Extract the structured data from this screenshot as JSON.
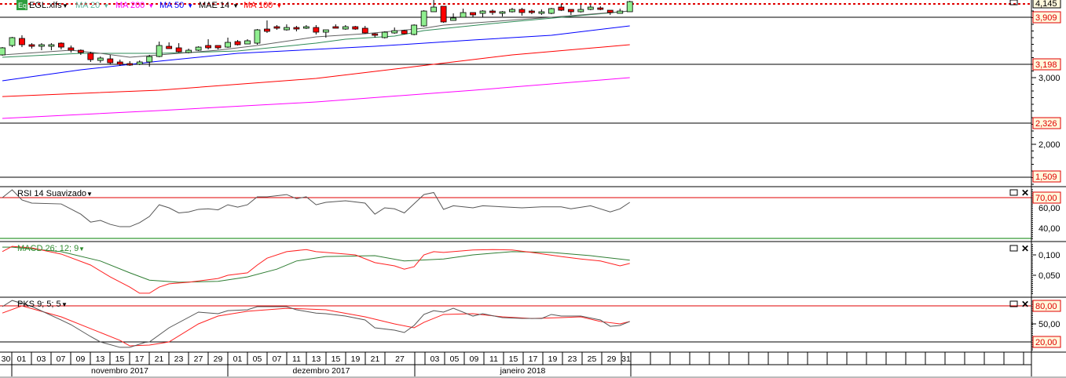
{
  "legend": {
    "eq_badge": "Eq",
    "symbol": "EGL.xlfs",
    "items": [
      {
        "label": "MA 20",
        "color": "#5fb8a0"
      },
      {
        "label": "MA 200",
        "color": "#ff00ff"
      },
      {
        "label": "MA 50",
        "color": "#0000ff"
      },
      {
        "label": "MAE 14",
        "color": "#000000"
      },
      {
        "label": "MA 100",
        "color": "#ff0000"
      }
    ]
  },
  "colors": {
    "up": "#90ee90",
    "down": "#ff0000",
    "ma20": "#2e8b57",
    "mae14": "#606060",
    "ma50": "#0000ff",
    "ma100": "#ff0000",
    "ma200": "#ff00ff",
    "level": "#ff0000",
    "label_bg": "#fff8dc"
  },
  "price_axis": {
    "last": "4,145",
    "levels": [
      "3,909",
      "3,198",
      "2,326",
      "1,509"
    ],
    "ticks": [
      "3,000",
      "2,000"
    ]
  },
  "rsi": {
    "title": "RSI 14 Suavizado",
    "level": "70,00",
    "ticks": [
      "60,00",
      "40,00"
    ],
    "values": [
      [
        0,
        70
      ],
      [
        1,
        77.7
      ],
      [
        2,
        67.7
      ],
      [
        3,
        64.6
      ],
      [
        6,
        63.8
      ],
      [
        8,
        53.8
      ],
      [
        9,
        46
      ],
      [
        10,
        47.7
      ],
      [
        11,
        43.8
      ],
      [
        12,
        41.5
      ],
      [
        13,
        41.5
      ],
      [
        14,
        45.4
      ],
      [
        15,
        51.5
      ],
      [
        16,
        63
      ],
      [
        17,
        60
      ],
      [
        18,
        55
      ],
      [
        19,
        56
      ],
      [
        20,
        58.5
      ],
      [
        21,
        59
      ],
      [
        22,
        58
      ],
      [
        23,
        63
      ],
      [
        24,
        60.7
      ],
      [
        25,
        63
      ],
      [
        26,
        70.8
      ],
      [
        27,
        70.8
      ],
      [
        29,
        73
      ],
      [
        30,
        69
      ],
      [
        31,
        70.8
      ],
      [
        32,
        63
      ],
      [
        33,
        65.4
      ],
      [
        35,
        66.9
      ],
      [
        37,
        64.6
      ],
      [
        38,
        53.8
      ],
      [
        39,
        60
      ],
      [
        40,
        59
      ],
      [
        41,
        55
      ],
      [
        43,
        73
      ],
      [
        44,
        75
      ],
      [
        45,
        58.5
      ],
      [
        46,
        62
      ],
      [
        48,
        60
      ],
      [
        49,
        62
      ],
      [
        51,
        61
      ],
      [
        53,
        60
      ],
      [
        55,
        61
      ],
      [
        57,
        61
      ],
      [
        58,
        59
      ],
      [
        60,
        62
      ],
      [
        62,
        56
      ],
      [
        63,
        59
      ],
      [
        64,
        65.4
      ]
    ]
  },
  "macd": {
    "title": "MACD 26; 12; 9",
    "ticks": [
      "0,100",
      "0,050"
    ],
    "macd": [
      [
        0,
        0.108
      ],
      [
        1,
        0.121
      ],
      [
        3,
        0.117
      ],
      [
        6,
        0.102
      ],
      [
        9,
        0.075
      ],
      [
        11,
        0.046
      ],
      [
        13,
        0.021
      ],
      [
        14,
        0.006
      ],
      [
        15,
        0.006
      ],
      [
        16,
        0.021
      ],
      [
        17,
        0.029
      ],
      [
        19,
        0.033
      ],
      [
        22,
        0.042
      ],
      [
        23,
        0.05
      ],
      [
        25,
        0.056
      ],
      [
        26,
        0.075
      ],
      [
        27,
        0.092
      ],
      [
        29,
        0.108
      ],
      [
        31,
        0.113
      ],
      [
        32,
        0.108
      ],
      [
        33,
        0.106
      ],
      [
        36,
        0.1
      ],
      [
        38,
        0.081
      ],
      [
        40,
        0.073
      ],
      [
        41,
        0.065
      ],
      [
        42,
        0.071
      ],
      [
        43,
        0.1
      ],
      [
        44,
        0.108
      ],
      [
        45,
        0.106
      ],
      [
        48,
        0.112
      ],
      [
        50,
        0.113
      ],
      [
        52,
        0.112
      ],
      [
        54,
        0.106
      ],
      [
        57,
        0.096
      ],
      [
        59,
        0.09
      ],
      [
        61,
        0.085
      ],
      [
        63,
        0.073
      ],
      [
        64,
        0.079
      ]
    ],
    "signal": [
      [
        0,
        0.119
      ],
      [
        1,
        0.119
      ],
      [
        6,
        0.108
      ],
      [
        10,
        0.085
      ],
      [
        13,
        0.056
      ],
      [
        15,
        0.038
      ],
      [
        18,
        0.033
      ],
      [
        22,
        0.035
      ],
      [
        25,
        0.046
      ],
      [
        28,
        0.065
      ],
      [
        30,
        0.085
      ],
      [
        33,
        0.096
      ],
      [
        38,
        0.098
      ],
      [
        41,
        0.085
      ],
      [
        45,
        0.09
      ],
      [
        48,
        0.1
      ],
      [
        52,
        0.108
      ],
      [
        56,
        0.106
      ],
      [
        60,
        0.098
      ],
      [
        64,
        0.087
      ]
    ]
  },
  "pks": {
    "title": "PKS 9; 5; 5",
    "levels": [
      "80,00",
      "20,00"
    ],
    "ticks": [
      "50,00"
    ],
    "k": [
      [
        0,
        78.7
      ],
      [
        1,
        89
      ],
      [
        3,
        79
      ],
      [
        6,
        56.5
      ],
      [
        7,
        48.7
      ],
      [
        9,
        29
      ],
      [
        10,
        20
      ],
      [
        12,
        11
      ],
      [
        13,
        11
      ],
      [
        14.5,
        19
      ],
      [
        15,
        20
      ],
      [
        17,
        43.5
      ],
      [
        20,
        69.6
      ],
      [
        22,
        67
      ],
      [
        23,
        72
      ],
      [
        25,
        73.5
      ],
      [
        26,
        78.7
      ],
      [
        29,
        78.7
      ],
      [
        30,
        73.5
      ],
      [
        32,
        68
      ],
      [
        33,
        67
      ],
      [
        35,
        63
      ],
      [
        37,
        56.5
      ],
      [
        38,
        43.5
      ],
      [
        40,
        39.6
      ],
      [
        41,
        35.7
      ],
      [
        42,
        47.4
      ],
      [
        43,
        65.7
      ],
      [
        44,
        72
      ],
      [
        45,
        69.6
      ],
      [
        46,
        76
      ],
      [
        48,
        63
      ],
      [
        49,
        67
      ],
      [
        51,
        60.4
      ],
      [
        53,
        59.1
      ],
      [
        55,
        59
      ],
      [
        56,
        65.7
      ],
      [
        57,
        63
      ],
      [
        59,
        63
      ],
      [
        61,
        56.5
      ],
      [
        62,
        46
      ],
      [
        63,
        47.4
      ],
      [
        64,
        54
      ]
    ],
    "d": [
      [
        0,
        68
      ],
      [
        2,
        80
      ],
      [
        6,
        61.7
      ],
      [
        12,
        22.6
      ],
      [
        13,
        13.5
      ],
      [
        15,
        14.8
      ],
      [
        17,
        20
      ],
      [
        20,
        50
      ],
      [
        22,
        63
      ],
      [
        25,
        71
      ],
      [
        29,
        76
      ],
      [
        33,
        73.5
      ],
      [
        37,
        61.7
      ],
      [
        40,
        50
      ],
      [
        42,
        43.5
      ],
      [
        43,
        52.6
      ],
      [
        45,
        65.7
      ],
      [
        48,
        67
      ],
      [
        51,
        61.7
      ],
      [
        54,
        59
      ],
      [
        57,
        60.4
      ],
      [
        59,
        61.7
      ],
      [
        61,
        54
      ],
      [
        63,
        50
      ],
      [
        64,
        54
      ]
    ]
  },
  "candles": [
    [
      3.341,
      3.458,
      3.329,
      3.447
    ],
    [
      3.482,
      3.611,
      3.458,
      3.6
    ],
    [
      3.588,
      3.635,
      3.458,
      3.494
    ],
    [
      3.494,
      3.517,
      3.435,
      3.47
    ],
    [
      3.47,
      3.517,
      3.411,
      3.494
    ],
    [
      3.47,
      3.517,
      3.411,
      3.494
    ],
    [
      3.517,
      3.529,
      3.423,
      3.458
    ],
    [
      3.447,
      3.482,
      3.376,
      3.411
    ],
    [
      3.411,
      3.423,
      3.341,
      3.376
    ],
    [
      3.364,
      3.388,
      3.235,
      3.27
    ],
    [
      3.258,
      3.317,
      3.223,
      3.294
    ],
    [
      3.282,
      3.341,
      3.2,
      3.223
    ],
    [
      3.235,
      3.27,
      3.176,
      3.2
    ],
    [
      3.211,
      3.247,
      3.176,
      3.188
    ],
    [
      3.2,
      3.258,
      3.188,
      3.235
    ],
    [
      3.235,
      3.341,
      3.164,
      3.317
    ],
    [
      3.317,
      3.541,
      3.306,
      3.482
    ],
    [
      3.47,
      3.529,
      3.435,
      3.435
    ],
    [
      3.447,
      3.517,
      3.376,
      3.388
    ],
    [
      3.376,
      3.435,
      3.364,
      3.411
    ],
    [
      3.411,
      3.47,
      3.4,
      3.458
    ],
    [
      3.482,
      3.576,
      3.423,
      3.447
    ],
    [
      3.482,
      3.482,
      3.423,
      3.447
    ],
    [
      3.458,
      3.6,
      3.447,
      3.529
    ],
    [
      3.541,
      3.564,
      3.482,
      3.494
    ],
    [
      3.505,
      3.576,
      3.505,
      3.553
    ],
    [
      3.517,
      3.729,
      3.494,
      3.717
    ],
    [
      3.729,
      3.858,
      3.67,
      3.694
    ],
    [
      3.764,
      3.788,
      3.717,
      3.741
    ],
    [
      3.717,
      3.799,
      3.705,
      3.752
    ],
    [
      3.752,
      3.776,
      3.694,
      3.729
    ],
    [
      3.741,
      3.788,
      3.729,
      3.764
    ],
    [
      3.752,
      3.788,
      3.647,
      3.682
    ],
    [
      3.682,
      3.717,
      3.6,
      3.717
    ],
    [
      3.764,
      3.799,
      3.741,
      3.741
    ],
    [
      3.729,
      3.788,
      3.717,
      3.764
    ],
    [
      3.764,
      3.776,
      3.717,
      3.729
    ],
    [
      3.741,
      3.776,
      3.658,
      3.67
    ],
    [
      3.658,
      3.67,
      3.6,
      3.635
    ],
    [
      3.6,
      3.694,
      3.588,
      3.682
    ],
    [
      3.67,
      3.752,
      3.658,
      3.705
    ],
    [
      3.705,
      3.717,
      3.647,
      3.658
    ],
    [
      3.647,
      3.799,
      3.635,
      3.788
    ],
    [
      3.776,
      4.011,
      3.764,
      3.999
    ],
    [
      3.988,
      4.164,
      3.988,
      4.058
    ],
    [
      4.07,
      4.07,
      3.823,
      3.835
    ],
    [
      3.858,
      3.964,
      3.858,
      3.894
    ],
    [
      3.905,
      4.035,
      3.905,
      3.976
    ],
    [
      3.976,
      3.976,
      3.905,
      3.941
    ],
    [
      3.964,
      4.011,
      3.905,
      3.999
    ],
    [
      3.999,
      4.023,
      3.941,
      3.976
    ],
    [
      3.964,
      3.999,
      3.917,
      3.988
    ],
    [
      3.988,
      4.046,
      3.976,
      4.023
    ],
    [
      4.023,
      4.046,
      3.929,
      3.976
    ],
    [
      3.999,
      4.023,
      3.952,
      3.976
    ],
    [
      3.964,
      4.023,
      3.941,
      3.988
    ],
    [
      3.964,
      4.046,
      3.952,
      4.035
    ],
    [
      4.058,
      4.105,
      3.999,
      4.011
    ],
    [
      4.023,
      4.023,
      3.941,
      3.988
    ],
    [
      3.988,
      4.093,
      3.976,
      4.023
    ],
    [
      4.023,
      4.093,
      4.011,
      4.058
    ],
    [
      4.046,
      4.07,
      4.011,
      4.023
    ],
    [
      4.011,
      4.011,
      3.941,
      3.976
    ],
    [
      3.964,
      4.035,
      3.964,
      3.999
    ],
    [
      3.988,
      4.152,
      3.988,
      4.14
    ]
  ],
  "moving_averages": {
    "ma20": [
      [
        0,
        3.306
      ],
      [
        8,
        3.364
      ],
      [
        16,
        3.364
      ],
      [
        24,
        3.4
      ],
      [
        32,
        3.517
      ],
      [
        35,
        3.576
      ],
      [
        40,
        3.623
      ],
      [
        43,
        3.705
      ],
      [
        50,
        3.811
      ],
      [
        64,
        3.999
      ]
    ],
    "mae14": [
      [
        0,
        3.341
      ],
      [
        7,
        3.411
      ],
      [
        10,
        3.364
      ],
      [
        13,
        3.306
      ],
      [
        16,
        3.341
      ],
      [
        22,
        3.411
      ],
      [
        26,
        3.482
      ],
      [
        32,
        3.611
      ],
      [
        37,
        3.658
      ],
      [
        43,
        3.741
      ],
      [
        45,
        3.788
      ],
      [
        56,
        3.905
      ],
      [
        64,
        3.999
      ]
    ],
    "ma50": [
      [
        0,
        2.953
      ],
      [
        8,
        3.117
      ],
      [
        16,
        3.247
      ],
      [
        24,
        3.364
      ],
      [
        38,
        3.47
      ],
      [
        48,
        3.564
      ],
      [
        56,
        3.635
      ],
      [
        64,
        3.776
      ]
    ],
    "ma100": [
      [
        0,
        2.717
      ],
      [
        16,
        2.812
      ],
      [
        32,
        2.988
      ],
      [
        42,
        3.164
      ],
      [
        52,
        3.341
      ],
      [
        64,
        3.494
      ]
    ],
    "ma200": [
      [
        0,
        2.388
      ],
      [
        16,
        2.506
      ],
      [
        32,
        2.635
      ],
      [
        48,
        2.811
      ],
      [
        64,
        3.0
      ]
    ]
  },
  "x_axis": {
    "days": [
      "30",
      "01",
      "03",
      "07",
      "09",
      "13",
      "15",
      "17",
      "21",
      "23",
      "27",
      "29",
      "01",
      "05",
      "07",
      "11",
      "13",
      "15",
      "19",
      "21",
      "27",
      "",
      "03",
      "05",
      "09",
      "11",
      "15",
      "17",
      "19",
      "23",
      "25",
      "29",
      "31"
    ],
    "months": [
      "novembro 2017",
      "dezembro 2017",
      "janeiro 2018"
    ]
  }
}
